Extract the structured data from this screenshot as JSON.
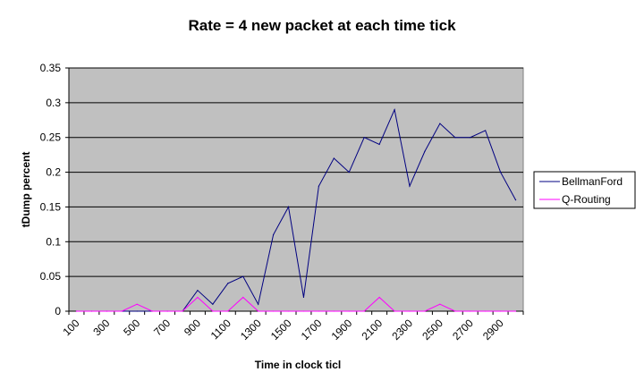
{
  "chart_data": {
    "type": "line",
    "title": "Rate = 4 new packet at each time tick",
    "xlabel": "Time in clock ticl",
    "ylabel": "tDump percent",
    "ylim": [
      0,
      0.35
    ],
    "y_ticks": [
      "0",
      "0.05",
      "0.1",
      "0.15",
      "0.2",
      "0.25",
      "0.3",
      "0.35"
    ],
    "categories": [
      100,
      200,
      300,
      400,
      500,
      600,
      700,
      800,
      900,
      1000,
      1100,
      1200,
      1300,
      1400,
      1500,
      1600,
      1700,
      1800,
      1900,
      2000,
      2100,
      2200,
      2300,
      2400,
      2500,
      2600,
      2700,
      2800,
      2900,
      3000
    ],
    "x_tick_labels": [
      "100",
      "300",
      "500",
      "700",
      "900",
      "1100",
      "1300",
      "1500",
      "1700",
      "1900",
      "2100",
      "2300",
      "2500",
      "2700",
      "2900"
    ],
    "grid": true,
    "legend_position": "right",
    "plot_background": "#c0c0c0",
    "series": [
      {
        "name": "BellmanFord",
        "color": "#000080",
        "values": [
          0,
          0,
          0,
          0,
          0,
          0,
          0,
          0,
          0.03,
          0.01,
          0.04,
          0.05,
          0.01,
          0.11,
          0.15,
          0.02,
          0.18,
          0.22,
          0.2,
          0.25,
          0.24,
          0.29,
          0.18,
          0.23,
          0.27,
          0.25,
          0.25,
          0.26,
          0.2,
          0.16
        ]
      },
      {
        "name": "Q-Routing",
        "color": "#ff00ff",
        "values": [
          0,
          0,
          0,
          0,
          0.01,
          0,
          0,
          0,
          0.02,
          0,
          0,
          0.02,
          0,
          0,
          0,
          0,
          0,
          0,
          0,
          0,
          0.02,
          0,
          0,
          0,
          0.01,
          0,
          0,
          0,
          0,
          0
        ]
      }
    ]
  }
}
